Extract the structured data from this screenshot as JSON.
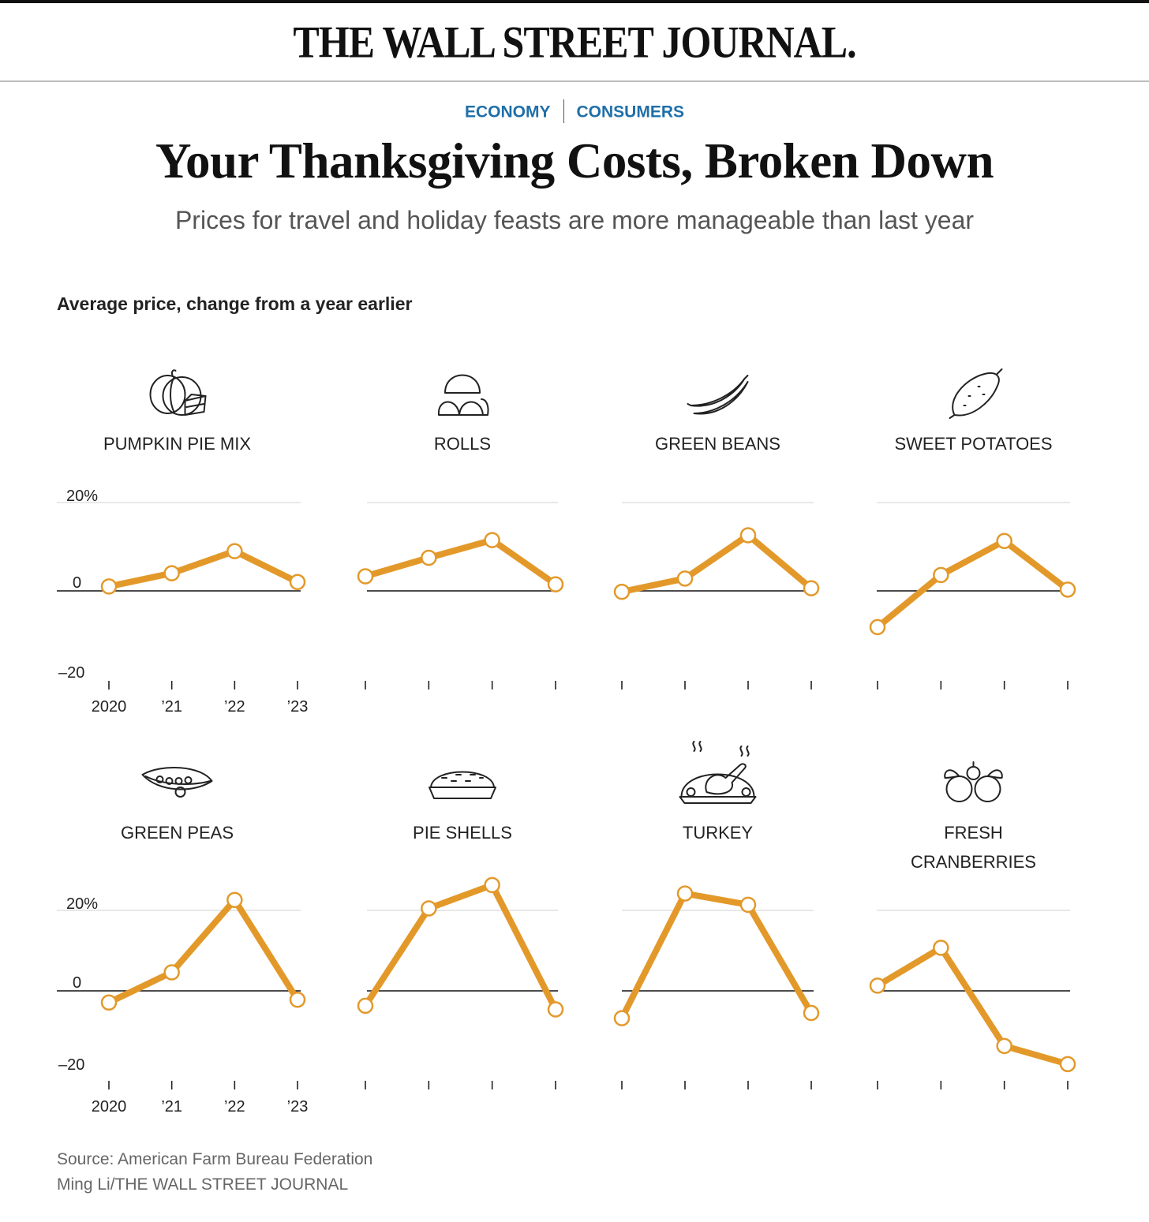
{
  "masthead": "THE WALL STREET JOURNAL.",
  "sections": [
    "ECONOMY",
    "CONSUMERS"
  ],
  "headline": "Your Thanksgiving Costs, Broken Down",
  "dek": "Prices for travel and holiday feasts are more manageable than last year",
  "chart_subtitle": "Average price, change from a year earlier",
  "source": "Source: American Farm Bureau Federation",
  "credit": "Ming Li/THE WALL STREET JOURNAL",
  "colors": {
    "line": "#e3992a",
    "accent": "#1f6fa8"
  },
  "chart_data": [
    {
      "type": "line",
      "title": "PUMPKIN PIE MIX",
      "icon": "pumpkin-pie-icon",
      "x": [
        "2020",
        "’21",
        "’22",
        "’23"
      ],
      "values": [
        1,
        4,
        9,
        2
      ],
      "ylim": [
        -20,
        20
      ],
      "yticks": [
        "20%",
        "0",
        "–20"
      ]
    },
    {
      "type": "line",
      "title": "ROLLS",
      "icon": "rolls-icon",
      "x": [
        "2020",
        "’21",
        "’22",
        "’23"
      ],
      "values": [
        3.3,
        7.5,
        11.5,
        1.5
      ],
      "ylim": [
        -20,
        20
      ]
    },
    {
      "type": "line",
      "title": "GREEN BEANS",
      "icon": "green-beans-icon",
      "x": [
        "2020",
        "’21",
        "’22",
        "’23"
      ],
      "values": [
        -0.2,
        2.8,
        12.6,
        0.6
      ],
      "ylim": [
        -20,
        20
      ]
    },
    {
      "type": "line",
      "title": "SWEET POTATOES",
      "icon": "sweet-potato-icon",
      "x": [
        "2020",
        "’21",
        "’22",
        "’23"
      ],
      "values": [
        -8.2,
        3.6,
        11.3,
        0.3
      ],
      "ylim": [
        -20,
        20
      ]
    },
    {
      "type": "line",
      "title": "GREEN PEAS",
      "icon": "green-peas-icon",
      "x": [
        "2020",
        "’21",
        "’22",
        "’23"
      ],
      "values": [
        -2.9,
        4.6,
        22.6,
        -2.2
      ],
      "ylim": [
        -20,
        20
      ],
      "yticks": [
        "20%",
        "0",
        "–20"
      ]
    },
    {
      "type": "line",
      "title": "PIE SHELLS",
      "icon": "pie-shell-icon",
      "x": [
        "2020",
        "’21",
        "’22",
        "’23"
      ],
      "values": [
        -3.7,
        20.5,
        26.3,
        -4.6
      ],
      "ylim": [
        -20,
        20
      ]
    },
    {
      "type": "line",
      "title": "TURKEY",
      "icon": "turkey-icon",
      "x": [
        "2020",
        "’21",
        "’22",
        "’23"
      ],
      "values": [
        -6.8,
        24.2,
        21.4,
        -5.5
      ],
      "ylim": [
        -20,
        20
      ]
    },
    {
      "type": "line",
      "title": "FRESH CRANBERRIES",
      "title_lines": [
        "FRESH",
        "CRANBERRIES"
      ],
      "icon": "cranberries-icon",
      "x": [
        "2020",
        "’21",
        "’22",
        "’23"
      ],
      "values": [
        1.3,
        10.7,
        -13.7,
        -18.2
      ],
      "ylim": [
        -20,
        20
      ]
    }
  ]
}
